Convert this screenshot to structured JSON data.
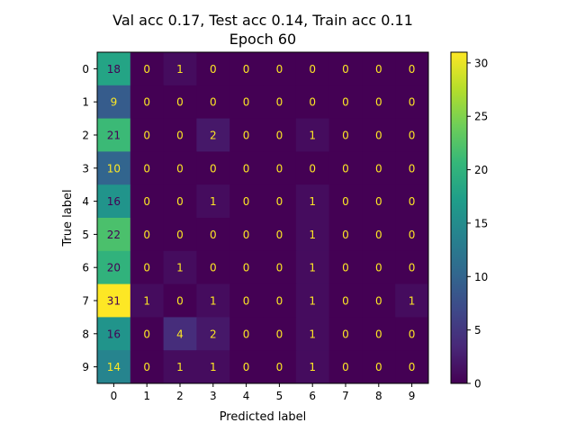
{
  "chart_data": {
    "type": "heatmap",
    "title_lines": [
      "Val acc 0.17, Test acc 0.14, Train acc 0.11",
      "Epoch 60"
    ],
    "xlabel": "Predicted label",
    "ylabel": "True label",
    "x_ticks": [
      "0",
      "1",
      "2",
      "3",
      "4",
      "5",
      "6",
      "7",
      "8",
      "9"
    ],
    "y_ticks": [
      "0",
      "1",
      "2",
      "3",
      "4",
      "5",
      "6",
      "7",
      "8",
      "9"
    ],
    "matrix": [
      [
        18,
        0,
        1,
        0,
        0,
        0,
        0,
        0,
        0,
        0
      ],
      [
        9,
        0,
        0,
        0,
        0,
        0,
        0,
        0,
        0,
        0
      ],
      [
        21,
        0,
        0,
        2,
        0,
        0,
        1,
        0,
        0,
        0
      ],
      [
        10,
        0,
        0,
        0,
        0,
        0,
        0,
        0,
        0,
        0
      ],
      [
        16,
        0,
        0,
        1,
        0,
        0,
        1,
        0,
        0,
        0
      ],
      [
        22,
        0,
        0,
        0,
        0,
        0,
        1,
        0,
        0,
        0
      ],
      [
        20,
        0,
        1,
        0,
        0,
        0,
        1,
        0,
        0,
        0
      ],
      [
        31,
        1,
        0,
        1,
        0,
        0,
        1,
        0,
        0,
        1
      ],
      [
        16,
        0,
        4,
        2,
        0,
        0,
        1,
        0,
        0,
        0
      ],
      [
        14,
        0,
        1,
        1,
        0,
        0,
        1,
        0,
        0,
        0
      ]
    ],
    "colorbar": {
      "colormap": "viridis",
      "range": [
        0,
        31
      ],
      "ticks": [
        0,
        5,
        10,
        15,
        20,
        25,
        30
      ]
    },
    "grid": false,
    "colors": {
      "text_light": "#fde725",
      "text_dark": "#440154"
    }
  }
}
